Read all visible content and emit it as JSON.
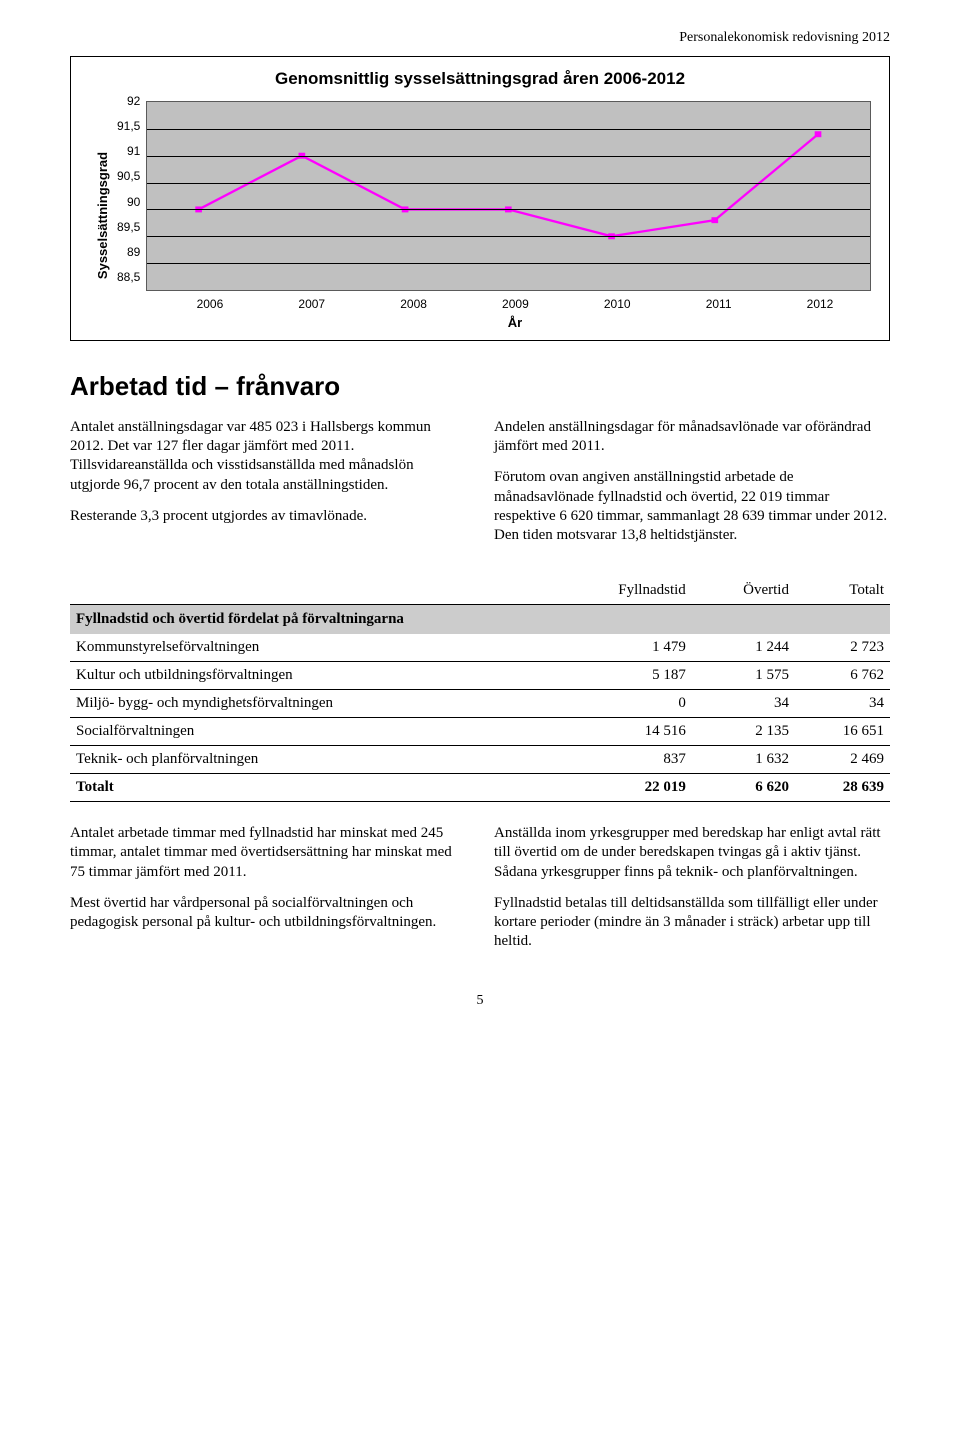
{
  "page_header": "Personalekonomisk redovisning 2012",
  "page_number": "5",
  "chart": {
    "type": "line",
    "title": "Genomsnittlig sysselsättningsgrad åren 2006-2012",
    "ylabel": "Sysselsättningsgrad",
    "xlabel": "År",
    "categories": [
      "2006",
      "2007",
      "2008",
      "2009",
      "2010",
      "2011",
      "2012"
    ],
    "values": [
      90.0,
      91.0,
      90.0,
      90.0,
      89.5,
      89.8,
      91.4
    ],
    "ylim_min": 88.5,
    "ylim_max": 92,
    "ytick_step": 0.5,
    "yticks": [
      "92",
      "91,5",
      "91",
      "90,5",
      "90",
      "89,5",
      "89",
      "88,5"
    ],
    "background_color": "#c0c0c0",
    "grid_color": "#000000",
    "line_color": "#ff00ff",
    "marker_color": "#ff00ff",
    "marker_shape": "square",
    "marker_size": 6,
    "line_width": 1.5,
    "title_fontsize": 17,
    "label_fontsize": 13,
    "tick_fontsize": 12
  },
  "section_title": "Arbetad tid – frånvaro",
  "body_left": {
    "p1": "Antalet anställningsdagar var 485 023 i Hallsbergs kommun 2012. Det var 127 fler dagar jämfört med 2011. Tillsvidareanställda och visstidsanställda med månadslön utgjorde 96,7 procent av den totala anställningstiden.",
    "p2": "Resterande 3,3 procent utgjordes av timavlönade."
  },
  "body_right": {
    "p1": "Andelen anställningsdagar för månadsavlönade var oförändrad jämfört med 2011.",
    "p2": "Förutom ovan angiven anställningstid arbetade de månadsavlönade fyllnadstid och övertid, 22 019 timmar respektive 6 620 timmar, sammanlagt 28 639 timmar under 2012. Den tiden motsvarar 13,8 heltidstjänster."
  },
  "table": {
    "title": "Fyllnadstid och övertid fördelat på förvaltningarna",
    "columns": [
      "",
      "Fyllnadstid",
      "Övertid",
      "Totalt"
    ],
    "rows": [
      [
        "Kommunstyrelseförvaltningen",
        "1 479",
        "1 244",
        "2 723"
      ],
      [
        "Kultur och utbildningsförvaltningen",
        "5 187",
        "1 575",
        "6 762"
      ],
      [
        "Miljö- bygg- och myndighetsförvaltningen",
        "0",
        "34",
        "34"
      ],
      [
        "Socialförvaltningen",
        "14 516",
        "2 135",
        "16 651"
      ],
      [
        "Teknik- och planförvaltningen",
        "837",
        "1 632",
        "2 469"
      ]
    ],
    "total_row": [
      "Totalt",
      "22 019",
      "6 620",
      "28 639"
    ]
  },
  "body2_left": {
    "p1": "Antalet arbetade timmar med fyllnadstid har minskat med 245 timmar, antalet timmar med övertidsersättning har minskat med 75 timmar jämfört med 2011.",
    "p2": "Mest övertid har vårdpersonal på socialförvaltningen och pedagogisk personal på kultur- och utbildningsförvaltningen."
  },
  "body2_right": {
    "p1": "Anställda inom yrkesgrupper med beredskap har enligt avtal rätt till övertid om de under beredskapen tvingas gå i aktiv tjänst. Sådana yrkesgrupper finns på teknik- och planförvaltningen.",
    "p2": "Fyllnadstid betalas till deltidsanställda som tillfälligt eller under kortare perioder (mindre än 3 månader i sträck) arbetar upp till heltid."
  }
}
